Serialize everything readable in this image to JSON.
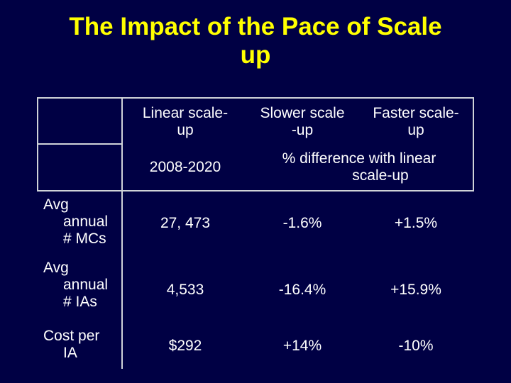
{
  "slide": {
    "title_line1": "The Impact of the Pace of Scale",
    "title_line2": "up"
  },
  "table": {
    "headers": {
      "linear_line1": "Linear scale-",
      "linear_line2": "up",
      "slower_line1": "Slower scale",
      "slower_line2": "-up",
      "faster_line1": "Faster scale-",
      "faster_line2": "up"
    },
    "subheaders": {
      "period": "2008-2020",
      "pct_line1": "% difference with linear",
      "pct_line2": "scale-up"
    },
    "rows": [
      {
        "label_line1": "Avg",
        "label_line2": "annual",
        "label_line3": "# MCs",
        "linear": "27, 473",
        "slower": "-1.6%",
        "faster": "+1.5%"
      },
      {
        "label_line1": "Avg",
        "label_line2": "annual",
        "label_line3": "# IAs",
        "linear": "4,533",
        "slower": "-16.4%",
        "faster": "+15.9%"
      },
      {
        "label_line1": "Cost per",
        "label_line2": "IA",
        "linear": "$292",
        "slower": "+14%",
        "faster": "-10%"
      }
    ]
  }
}
